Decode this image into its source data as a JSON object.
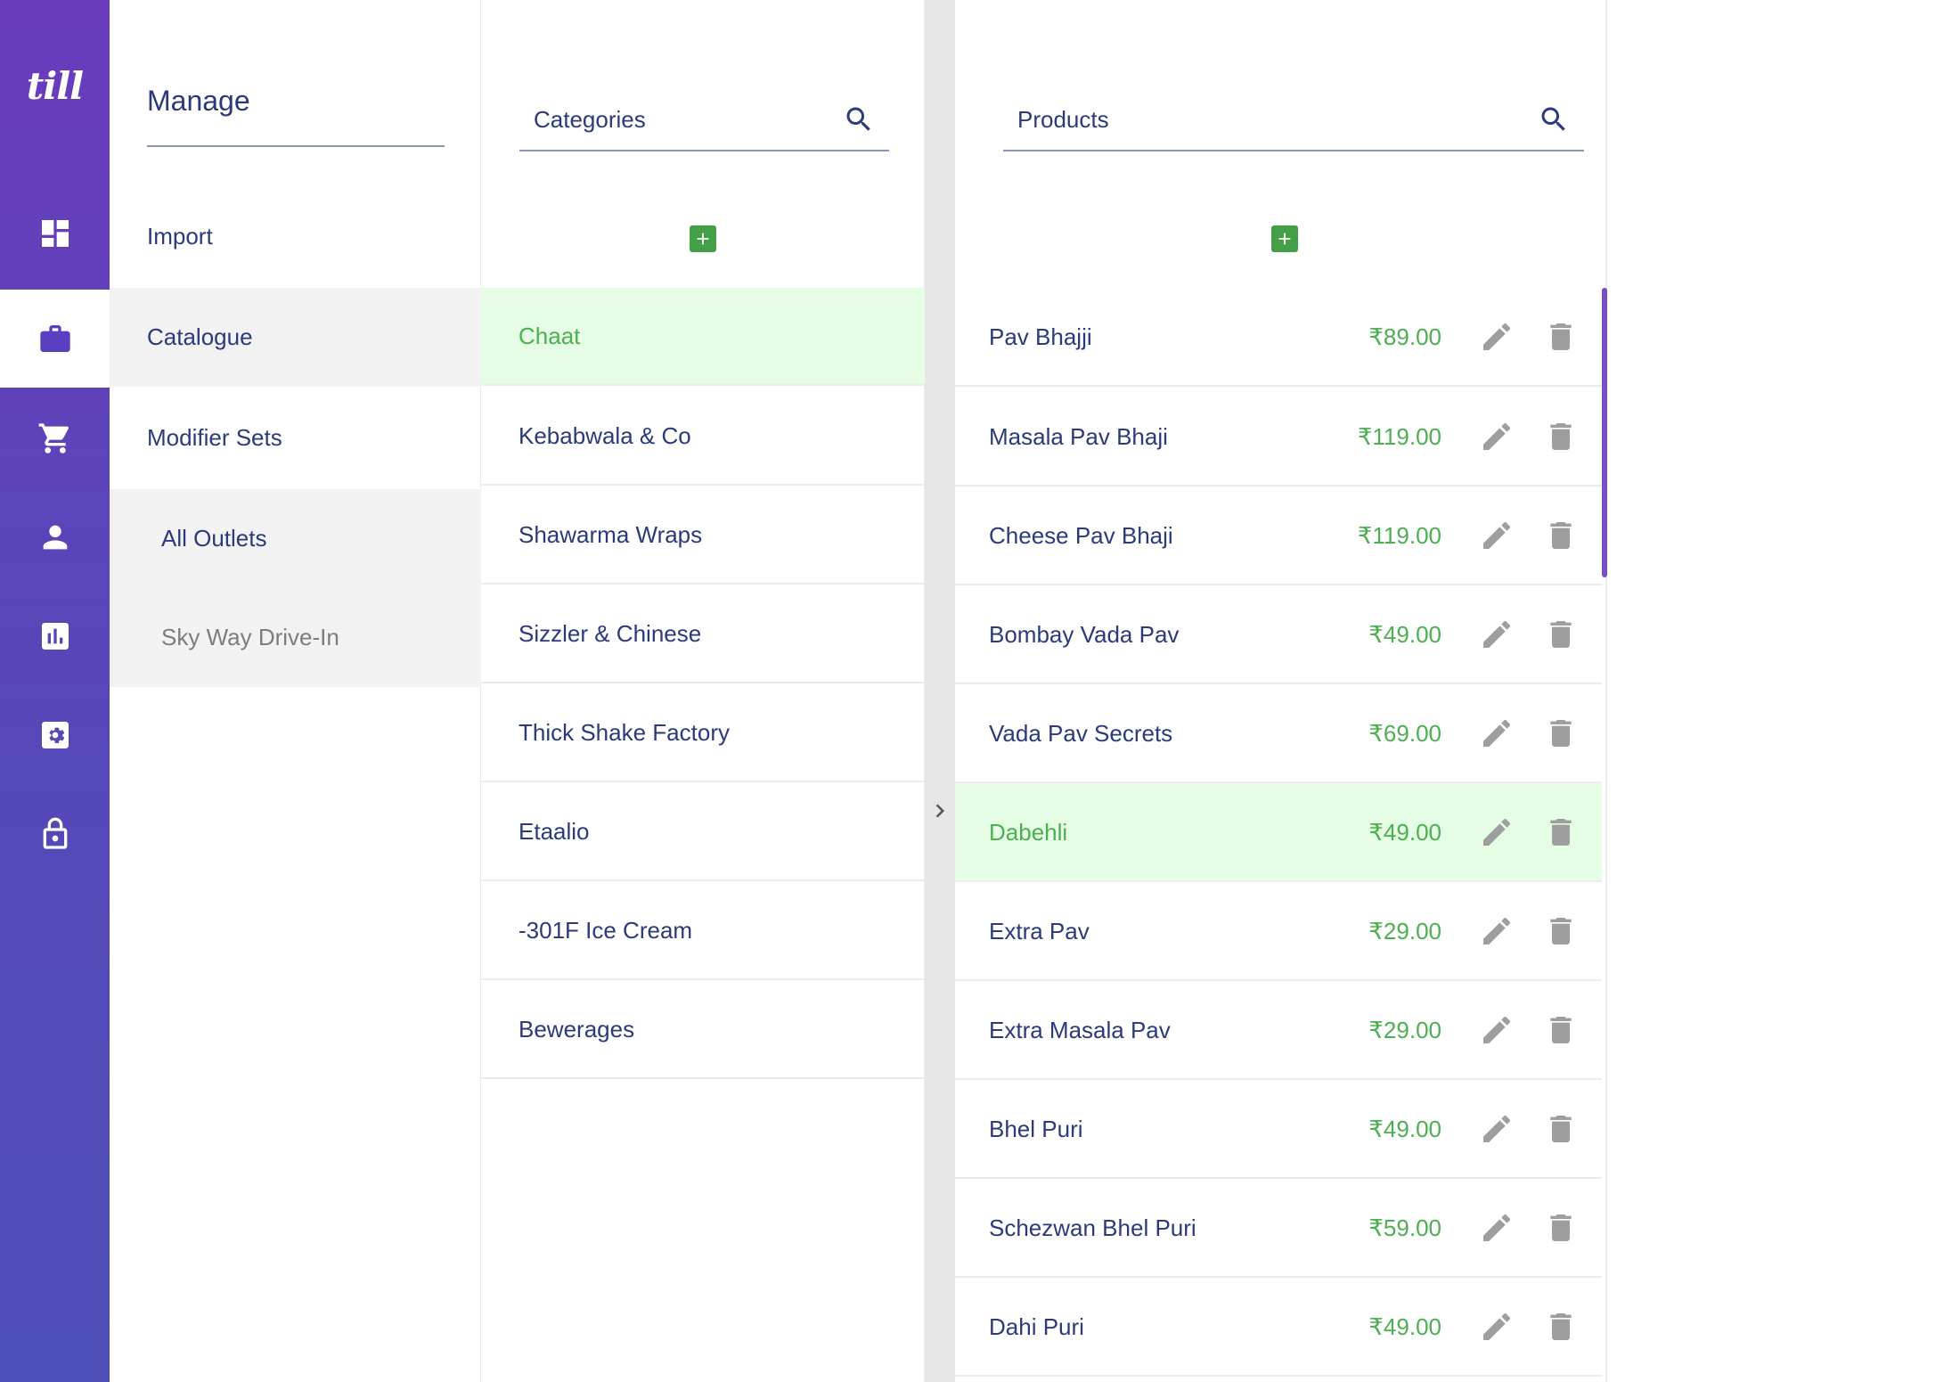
{
  "app": {
    "logo_text": "till"
  },
  "rail": {
    "items": [
      {
        "icon": "dashboard-icon",
        "active": false
      },
      {
        "icon": "briefcase-icon",
        "active": true
      },
      {
        "icon": "cart-icon",
        "active": false
      },
      {
        "icon": "person-icon",
        "active": false
      },
      {
        "icon": "bar-chart-icon",
        "active": false
      },
      {
        "icon": "settings-icon",
        "active": false
      },
      {
        "icon": "lock-icon",
        "active": false
      }
    ]
  },
  "manage": {
    "title": "Manage",
    "items": [
      {
        "label": "Import"
      },
      {
        "label": "Catalogue"
      },
      {
        "label": "Modifier Sets"
      }
    ],
    "outlets": [
      {
        "label": "All Outlets"
      },
      {
        "label": "Sky Way Drive-In"
      }
    ]
  },
  "categories": {
    "search_placeholder": "Categories",
    "items": [
      {
        "label": "Chaat"
      },
      {
        "label": "Kebabwala & Co"
      },
      {
        "label": "Shawarma Wraps"
      },
      {
        "label": "Sizzler & Chinese"
      },
      {
        "label": "Thick Shake Factory"
      },
      {
        "label": "Etaalio"
      },
      {
        "label": "-301F Ice Cream"
      },
      {
        "label": "Bewerages"
      }
    ]
  },
  "products": {
    "search_placeholder": "Products",
    "items": [
      {
        "name": "Pav Bhajji",
        "price": "₹89.00"
      },
      {
        "name": "Masala Pav Bhaji",
        "price": "₹119.00"
      },
      {
        "name": "Cheese Pav Bhaji",
        "price": "₹119.00"
      },
      {
        "name": "Bombay Vada Pav",
        "price": "₹49.00"
      },
      {
        "name": "Vada Pav Secrets",
        "price": "₹69.00"
      },
      {
        "name": "Dabehli",
        "price": "₹49.00"
      },
      {
        "name": "Extra Pav",
        "price": "₹29.00"
      },
      {
        "name": "Extra Masala Pav",
        "price": "₹29.00"
      },
      {
        "name": "Bhel Puri",
        "price": "₹49.00"
      },
      {
        "name": "Schezwan Bhel Puri",
        "price": "₹59.00"
      },
      {
        "name": "Dahi Puri",
        "price": "₹49.00"
      }
    ]
  },
  "colors": {
    "rail_gradient_top": "#6a3bbd",
    "rail_gradient_bottom": "#4e4eb8",
    "primary_text": "#2b3a7a",
    "accent_green": "#4caf50",
    "selected_row_bg": "#e4fde4",
    "add_button": "#43a047"
  }
}
